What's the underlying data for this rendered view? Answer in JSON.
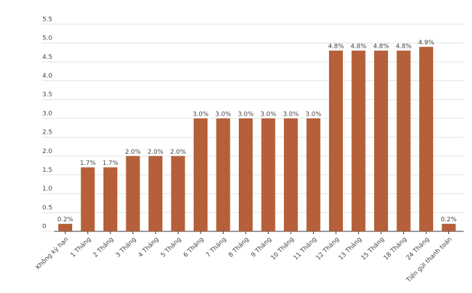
{
  "chart_data": {
    "type": "bar",
    "categories": [
      "Không kỳ hạn",
      "1 Tháng",
      "2 Tháng",
      "3 Tháng",
      "4 Tháng",
      "5 Tháng",
      "6 Tháng",
      "7 Tháng",
      "8 Tháng",
      "9 Tháng",
      "10 Tháng",
      "11 Tháng",
      "12 Tháng",
      "13 Tháng",
      "15 Tháng",
      "18 Tháng",
      "24 Tháng",
      "Tiền gửi thanh toán"
    ],
    "values": [
      0.2,
      1.7,
      1.7,
      2.0,
      2.0,
      2.0,
      3.0,
      3.0,
      3.0,
      3.0,
      3.0,
      3.0,
      4.8,
      4.8,
      4.8,
      4.8,
      4.9,
      0.2
    ],
    "value_labels": [
      "0.2%",
      "1.7%",
      "1.7%",
      "2.0%",
      "2.0%",
      "2.0%",
      "3.0%",
      "3.0%",
      "3.0%",
      "3.0%",
      "3.0%",
      "3.0%",
      "4.8%",
      "4.8%",
      "4.8%",
      "4.8%",
      "4.9%",
      "0.2%"
    ],
    "color": "#b5603a",
    "ylim": [
      0,
      5.5
    ],
    "yticks": [
      0,
      0.5,
      {
        "value": 1,
        "label": "1.0"
      },
      1.5,
      {
        "value": 2,
        "label": "2.0"
      },
      2.5,
      {
        "value": 3,
        "label": "3.0"
      },
      3.5,
      {
        "value": 4,
        "label": "4.0"
      },
      4.5,
      {
        "value": 5,
        "label": "5.0"
      },
      5.5
    ],
    "grid": true
  }
}
